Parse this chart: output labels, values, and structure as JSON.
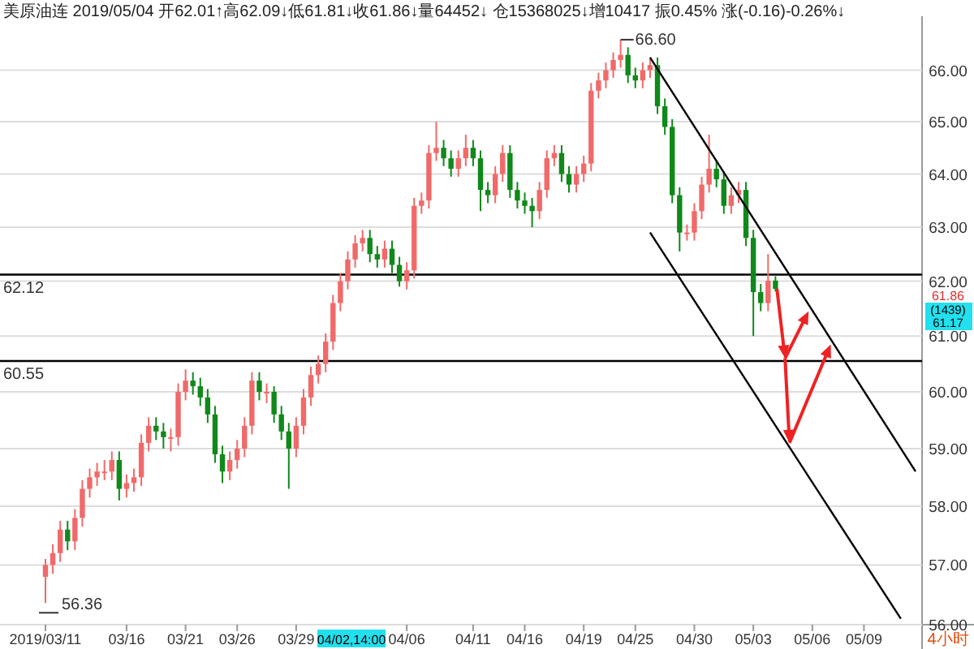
{
  "chart_data": {
    "type": "candlestick",
    "title": "美原油连 2019/05/04 开62.01↑高62.09↓低61.81↓收61.86↓量64452↓ 仓15368025↓增10417 振0.45% 涨(-0.16)-0.26%↓",
    "categories": [
      "2019/03/11",
      null,
      null,
      null,
      null,
      null,
      null,
      null,
      null,
      null,
      null,
      "03/16",
      null,
      null,
      null,
      null,
      null,
      null,
      null,
      "03/21",
      null,
      null,
      null,
      null,
      null,
      null,
      "03/26",
      null,
      null,
      null,
      null,
      null,
      null,
      null,
      "03/29",
      null,
      null,
      null,
      null,
      null,
      null,
      null,
      null,
      null,
      null,
      null,
      null,
      null,
      null,
      "04/06",
      null,
      null,
      null,
      null,
      null,
      null,
      null,
      null,
      "04/11",
      null,
      null,
      null,
      null,
      null,
      null,
      "04/16",
      null,
      null,
      null,
      null,
      null,
      null,
      null,
      "04/19",
      null,
      null,
      null,
      null,
      null,
      null,
      "04/25",
      null,
      null,
      null,
      null,
      null,
      null,
      null,
      "04/30",
      null,
      null,
      null,
      null,
      null,
      null,
      null,
      "05/03",
      null,
      null,
      null,
      null,
      null,
      null,
      null,
      "05/06",
      null,
      null,
      null,
      null,
      null,
      null,
      "05/09",
      null,
      null,
      null,
      null,
      null,
      null,
      null
    ],
    "colors": [
      "#f06a6a",
      "#f06a6a",
      "#f06a6a",
      "#10891a",
      "#f06a6a",
      "#f06a6a",
      "#f06a6a",
      "#f06a6a",
      "#f06a6a",
      "#f06a6a",
      "#10891a",
      "#f06a6a",
      "#f06a6a",
      "#f06a6a",
      "#f06a6a",
      "#10891a",
      "#10891a",
      "#f06a6a",
      "#f06a6a",
      "#f06a6a",
      "#10891a",
      "#10891a",
      "#10891a",
      "#10891a",
      "#10891a",
      "#f06a6a",
      "#f06a6a",
      "#f06a6a",
      "#f06a6a",
      "#10891a",
      "#f06a6a",
      "#10891a",
      "#10891a",
      "#10891a",
      "#f06a6a",
      "#f06a6a",
      "#f06a6a",
      "#f06a6a",
      "#f06a6a",
      "#f06a6a",
      "#f06a6a",
      "#f06a6a",
      "#f06a6a",
      "#f06a6a",
      "#10891a",
      "#10891a",
      "#f06a6a",
      "#10891a",
      "#10891a",
      "#f06a6a",
      "#f06a6a",
      "#f06a6a",
      "#f06a6a",
      "#f06a6a",
      "#10891a",
      "#10891a",
      "#f06a6a",
      "#f06a6a",
      "#10891a",
      "#10891a",
      "#10891a",
      "#f06a6a",
      "#f06a6a",
      "#10891a",
      "#10891a",
      "#10891a",
      "#10891a",
      "#f06a6a",
      "#f06a6a",
      "#f06a6a",
      "#10891a",
      "#10891a",
      "#f06a6a",
      "#f06a6a",
      "#f06a6a",
      "#f06a6a",
      "#f06a6a",
      "#f06a6a",
      "#f06a6a",
      "#10891a",
      "#10891a",
      "#f06a6a",
      "#f06a6a",
      "#10891a",
      "#10891a",
      "#10891a",
      "#10891a",
      "#f06a6a",
      "#f06a6a",
      "#f06a6a",
      "#f06a6a",
      "#10891a",
      "#10891a",
      "#f06a6a",
      "#f06a6a",
      "#10891a",
      "#10891a",
      "#10891a",
      "#f06a6a",
      "#10891a",
      null,
      null,
      null,
      null,
      null,
      null,
      null,
      null,
      null,
      null,
      null,
      null,
      null,
      null,
      null,
      null,
      null,
      null,
      null
    ],
    "ohlc": [
      [
        56.8,
        57.1,
        56.36,
        57.0
      ],
      [
        57.0,
        57.35,
        56.85,
        57.2
      ],
      [
        57.2,
        57.75,
        57.05,
        57.6
      ],
      [
        57.6,
        57.75,
        57.25,
        57.4
      ],
      [
        57.4,
        57.95,
        57.25,
        57.8
      ],
      [
        57.8,
        58.45,
        57.65,
        58.3
      ],
      [
        58.3,
        58.65,
        58.15,
        58.5
      ],
      [
        58.5,
        58.75,
        58.35,
        58.6
      ],
      [
        58.6,
        58.8,
        58.45,
        58.6
      ],
      [
        58.6,
        58.95,
        58.45,
        58.8
      ],
      [
        58.8,
        58.95,
        58.1,
        58.3
      ],
      [
        58.3,
        58.55,
        58.15,
        58.4
      ],
      [
        58.4,
        58.65,
        58.25,
        58.5
      ],
      [
        58.5,
        59.25,
        58.35,
        59.1
      ],
      [
        59.1,
        59.55,
        58.95,
        59.4
      ],
      [
        59.4,
        59.55,
        59.15,
        59.3
      ],
      [
        59.3,
        59.45,
        59.0,
        59.2
      ],
      [
        59.2,
        59.35,
        58.95,
        59.2
      ],
      [
        59.2,
        60.15,
        59.05,
        60.0
      ],
      [
        60.0,
        60.4,
        59.85,
        60.2
      ],
      [
        60.2,
        60.35,
        59.95,
        60.1
      ],
      [
        60.1,
        60.25,
        59.75,
        59.9
      ],
      [
        59.9,
        60.05,
        59.45,
        59.6
      ],
      [
        59.6,
        59.75,
        58.75,
        58.9
      ],
      [
        58.9,
        59.05,
        58.4,
        58.6
      ],
      [
        58.6,
        58.95,
        58.45,
        58.8
      ],
      [
        58.8,
        59.15,
        58.65,
        59.0
      ],
      [
        59.0,
        59.55,
        58.85,
        59.4
      ],
      [
        59.4,
        60.35,
        59.25,
        60.2
      ],
      [
        60.2,
        60.35,
        59.85,
        60.0
      ],
      [
        60.0,
        60.15,
        59.8,
        60.0
      ],
      [
        60.0,
        60.1,
        59.45,
        59.6
      ],
      [
        59.6,
        59.75,
        59.15,
        59.3
      ],
      [
        59.3,
        59.45,
        58.3,
        59.0
      ],
      [
        59.0,
        59.55,
        58.85,
        59.4
      ],
      [
        59.4,
        60.05,
        59.25,
        59.9
      ],
      [
        59.9,
        60.45,
        59.75,
        60.3
      ],
      [
        60.3,
        60.65,
        60.15,
        60.5
      ],
      [
        60.5,
        61.05,
        60.35,
        60.9
      ],
      [
        60.9,
        61.75,
        60.75,
        61.6
      ],
      [
        61.6,
        62.15,
        61.45,
        62.0
      ],
      [
        62.0,
        62.55,
        61.85,
        62.4
      ],
      [
        62.4,
        62.85,
        62.25,
        62.7
      ],
      [
        62.7,
        62.95,
        62.55,
        62.8
      ],
      [
        62.8,
        62.95,
        62.35,
        62.5
      ],
      [
        62.5,
        62.65,
        62.25,
        62.4
      ],
      [
        62.4,
        62.75,
        62.25,
        62.6
      ],
      [
        62.6,
        62.75,
        62.15,
        62.3
      ],
      [
        62.3,
        62.45,
        61.9,
        62.0
      ],
      [
        62.0,
        62.35,
        61.85,
        62.2
      ],
      [
        62.2,
        63.55,
        62.05,
        63.4
      ],
      [
        63.4,
        63.65,
        63.25,
        63.5
      ],
      [
        63.5,
        64.55,
        63.35,
        64.4
      ],
      [
        64.4,
        65.0,
        64.25,
        64.5
      ],
      [
        64.5,
        64.65,
        64.15,
        64.3
      ],
      [
        64.3,
        64.45,
        63.95,
        64.1
      ],
      [
        64.1,
        64.45,
        63.95,
        64.3
      ],
      [
        64.3,
        64.75,
        64.15,
        64.5
      ],
      [
        64.5,
        64.65,
        64.15,
        64.3
      ],
      [
        64.3,
        64.45,
        63.3,
        63.7
      ],
      [
        63.7,
        63.85,
        63.45,
        63.6
      ],
      [
        63.6,
        64.15,
        63.45,
        64.0
      ],
      [
        64.0,
        64.55,
        63.85,
        64.4
      ],
      [
        64.4,
        64.55,
        63.55,
        63.7
      ],
      [
        63.7,
        63.85,
        63.35,
        63.5
      ],
      [
        63.5,
        63.65,
        63.25,
        63.4
      ],
      [
        63.4,
        63.55,
        63.0,
        63.3
      ],
      [
        63.3,
        63.85,
        63.15,
        63.7
      ],
      [
        63.7,
        64.45,
        63.55,
        64.3
      ],
      [
        64.3,
        64.55,
        64.15,
        64.4
      ],
      [
        64.4,
        64.55,
        63.85,
        64.0
      ],
      [
        64.0,
        64.15,
        63.65,
        63.8
      ],
      [
        63.8,
        64.15,
        63.65,
        64.0
      ],
      [
        64.0,
        64.35,
        63.85,
        64.2
      ],
      [
        64.2,
        65.75,
        64.05,
        65.6
      ],
      [
        65.6,
        65.95,
        65.45,
        65.8
      ],
      [
        65.8,
        66.15,
        65.65,
        66.0
      ],
      [
        66.0,
        66.35,
        65.85,
        66.2
      ],
      [
        66.2,
        66.6,
        66.05,
        66.3
      ],
      [
        66.3,
        66.45,
        65.75,
        65.9
      ],
      [
        65.9,
        66.05,
        65.65,
        65.8
      ],
      [
        65.8,
        66.15,
        65.65,
        66.0
      ],
      [
        66.0,
        66.25,
        65.85,
        66.1
      ],
      [
        66.1,
        66.25,
        65.15,
        65.3
      ],
      [
        65.3,
        65.45,
        64.75,
        64.9
      ],
      [
        64.9,
        65.05,
        63.45,
        63.6
      ],
      [
        63.6,
        63.75,
        62.55,
        62.9
      ],
      [
        62.9,
        63.05,
        62.75,
        62.9
      ],
      [
        62.9,
        63.45,
        62.75,
        63.3
      ],
      [
        63.3,
        63.95,
        63.15,
        63.8
      ],
      [
        63.8,
        64.75,
        63.65,
        64.1
      ],
      [
        64.1,
        64.25,
        63.75,
        63.9
      ],
      [
        63.9,
        64.05,
        63.25,
        63.4
      ],
      [
        63.4,
        63.75,
        63.25,
        63.6
      ],
      [
        63.6,
        63.85,
        63.45,
        63.7
      ],
      [
        63.7,
        63.85,
        62.65,
        62.8
      ],
      [
        62.8,
        62.95,
        61.0,
        61.8
      ],
      [
        61.8,
        61.95,
        61.45,
        61.6
      ],
      [
        61.6,
        62.5,
        61.45,
        62.01
      ],
      [
        62.01,
        62.09,
        61.81,
        61.86
      ],
      null,
      null,
      null,
      null,
      null,
      null,
      null,
      null,
      null,
      null,
      null,
      null,
      null,
      null,
      null,
      null,
      null,
      null,
      null
    ],
    "series": [
      {
        "type": "line",
        "color": "#000000",
        "values": [
          null,
          null,
          null,
          null,
          null,
          null,
          null,
          null,
          null,
          null,
          null,
          null,
          null,
          null,
          null,
          null,
          null,
          null,
          null,
          null,
          null,
          null,
          null,
          null,
          null,
          null,
          null,
          null,
          null,
          null,
          null,
          null,
          null,
          null,
          null,
          null,
          null,
          null,
          null,
          null,
          null,
          null,
          null,
          null,
          null,
          null,
          null,
          null,
          null,
          null,
          null,
          null,
          null,
          null,
          null,
          null,
          null,
          null,
          null,
          null,
          null,
          null,
          null,
          null,
          null,
          null,
          null,
          null,
          null,
          null,
          null,
          null,
          null,
          null,
          null,
          null,
          null,
          null,
          null,
          null,
          null,
          null,
          66.25,
          null,
          null,
          null,
          null,
          null,
          null,
          null,
          null,
          null,
          null,
          null,
          null,
          null,
          null,
          null,
          null,
          null,
          null,
          null,
          null,
          null,
          null,
          null,
          null,
          null,
          null,
          null,
          null,
          null,
          null,
          null,
          null,
          null,
          null,
          null,
          58.6
        ]
      },
      {
        "type": "line",
        "color": "#000000",
        "values": [
          null,
          null,
          null,
          null,
          null,
          null,
          null,
          null,
          null,
          null,
          null,
          null,
          null,
          null,
          null,
          null,
          null,
          null,
          null,
          null,
          null,
          null,
          null,
          null,
          null,
          null,
          null,
          null,
          null,
          null,
          null,
          null,
          null,
          null,
          null,
          null,
          null,
          null,
          null,
          null,
          null,
          null,
          null,
          null,
          null,
          null,
          null,
          null,
          null,
          null,
          null,
          null,
          null,
          null,
          null,
          null,
          null,
          null,
          null,
          null,
          null,
          null,
          null,
          null,
          null,
          null,
          null,
          null,
          null,
          null,
          null,
          null,
          null,
          null,
          null,
          null,
          null,
          null,
          null,
          null,
          null,
          null,
          62.9,
          null,
          null,
          null,
          null,
          null,
          null,
          null,
          null,
          null,
          null,
          null,
          null,
          null,
          null,
          null,
          null,
          null,
          null,
          null,
          null,
          null,
          null,
          null,
          null,
          null,
          null,
          null,
          null,
          null,
          null,
          null,
          null,
          null,
          56.1,
          null,
          null
        ]
      }
    ],
    "log": true,
    "ylim": [
      56,
      67
    ],
    "yticks": [
      {
        "value": 56,
        "label": "56.00"
      },
      {
        "value": 57,
        "label": "57.00"
      },
      {
        "value": 58,
        "label": "58.00"
      },
      {
        "value": 59,
        "label": "59.00"
      },
      {
        "value": 60,
        "label": "60.00"
      },
      {
        "value": 61,
        "label": "61.00"
      },
      {
        "value": 62,
        "label": "62.00"
      },
      {
        "value": 63,
        "label": "63.00"
      },
      {
        "value": 64,
        "label": "64.00"
      },
      {
        "value": 65,
        "label": "65.00"
      },
      {
        "value": 66,
        "label": "66.00"
      }
    ],
    "grid": "y",
    "ref_lines": [
      {
        "axis": "y",
        "value": 62.12,
        "label": "62.12",
        "color": "#000000"
      },
      {
        "axis": "y",
        "value": 60.55,
        "label": "60.55",
        "color": "#000000"
      }
    ],
    "annotations": [
      "66.60",
      "56.36",
      "61.86",
      "(1439)",
      "61.17",
      "04/02,14:00",
      "4小时"
    ]
  }
}
